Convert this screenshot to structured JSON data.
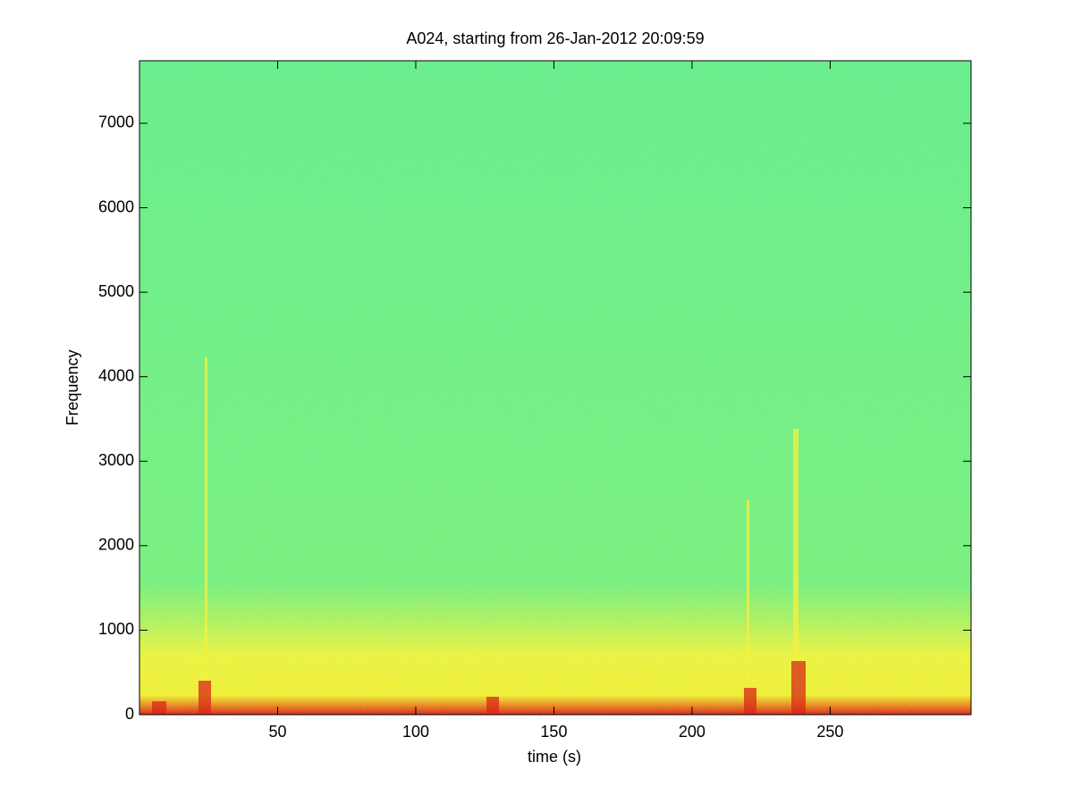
{
  "chart_data": {
    "type": "spectrogram",
    "title": "A024, starting from 26-Jan-2012 20:09:59",
    "xlabel": "time (s)",
    "ylabel": "Frequency",
    "xlim": [
      0,
      301
    ],
    "ylim": [
      0,
      7740
    ],
    "xticks": [
      50,
      100,
      150,
      200,
      250
    ],
    "yticks": [
      0,
      1000,
      2000,
      3000,
      4000,
      5000,
      6000,
      7000
    ]
  }
}
